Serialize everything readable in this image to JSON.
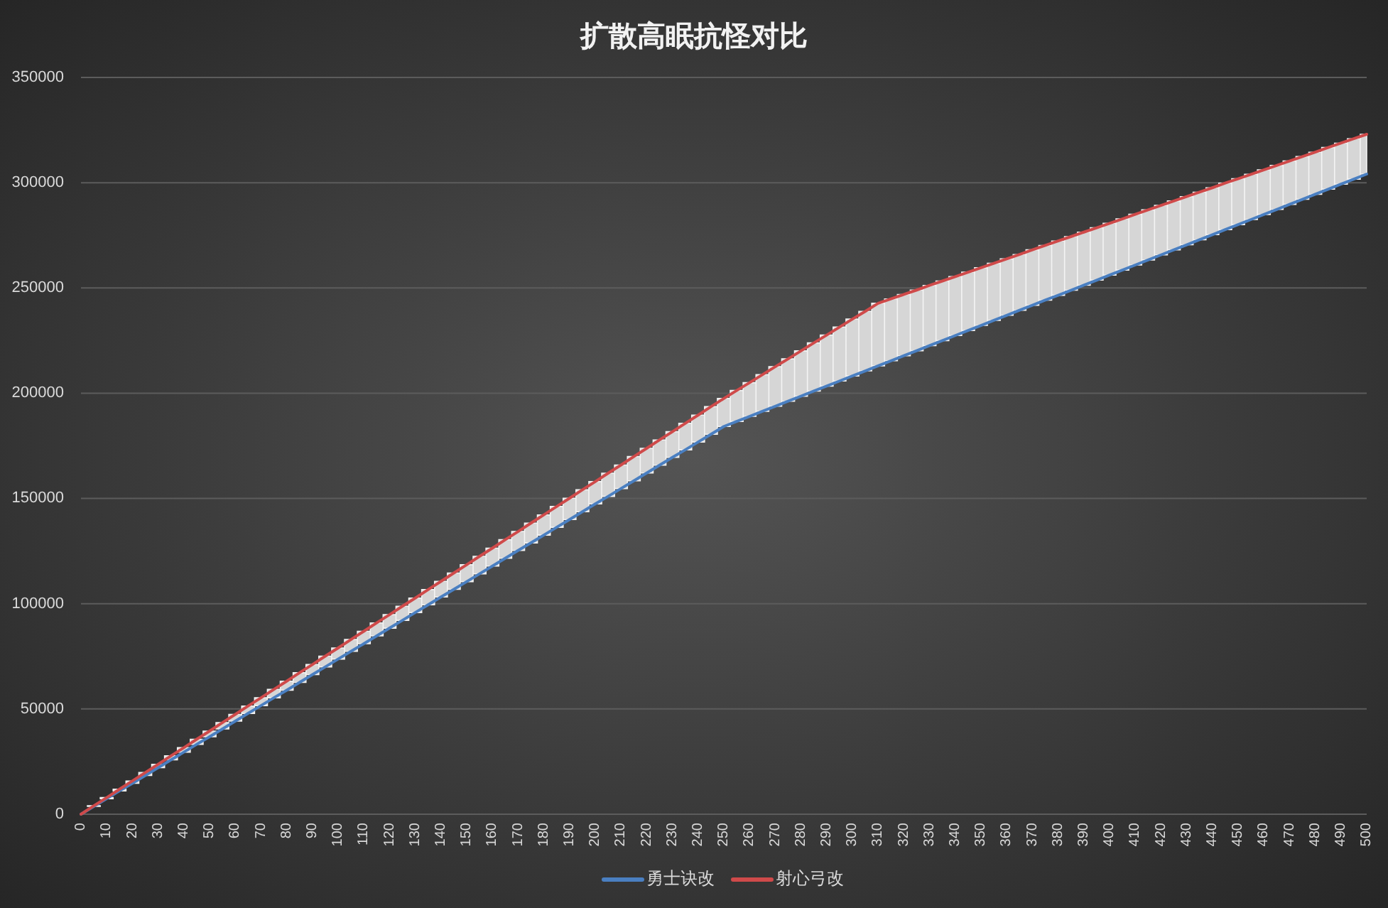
{
  "chart_data": {
    "type": "line",
    "title": "扩散高眠抗怪对比",
    "x": [
      0,
      5,
      10,
      15,
      20,
      25,
      30,
      35,
      40,
      45,
      50,
      55,
      60,
      65,
      70,
      75,
      80,
      85,
      90,
      95,
      100,
      105,
      110,
      115,
      120,
      125,
      130,
      135,
      140,
      145,
      150,
      155,
      160,
      165,
      170,
      175,
      180,
      185,
      190,
      195,
      200,
      205,
      210,
      215,
      220,
      225,
      230,
      235,
      240,
      245,
      250,
      255,
      260,
      265,
      270,
      275,
      280,
      285,
      290,
      295,
      300,
      305,
      310,
      315,
      320,
      325,
      330,
      335,
      340,
      345,
      350,
      355,
      360,
      365,
      370,
      375,
      380,
      385,
      390,
      395,
      400,
      405,
      410,
      415,
      420,
      425,
      430,
      435,
      440,
      445,
      450,
      455,
      460,
      465,
      470,
      475,
      480,
      485,
      490,
      495,
      500
    ],
    "xlim": [
      0,
      500
    ],
    "xticks": [
      0,
      10,
      20,
      30,
      40,
      50,
      60,
      70,
      80,
      90,
      100,
      110,
      120,
      130,
      140,
      150,
      160,
      170,
      180,
      190,
      200,
      210,
      220,
      230,
      240,
      250,
      260,
      270,
      280,
      290,
      300,
      310,
      320,
      330,
      340,
      350,
      360,
      370,
      380,
      390,
      400,
      410,
      420,
      430,
      440,
      450,
      460,
      470,
      480,
      490,
      500
    ],
    "ylim": [
      0,
      350000
    ],
    "yticks": [
      0,
      50000,
      100000,
      150000,
      200000,
      250000,
      300000,
      350000
    ],
    "grid": "y",
    "legend": "bottom",
    "line_style": "solid",
    "series": [
      {
        "name": "勇士诀改",
        "color": "#4a7fc1",
        "values": [
          0,
          3700,
          7400,
          11100,
          14700,
          18400,
          22100,
          25800,
          29500,
          33200,
          36800,
          40500,
          44200,
          47900,
          51600,
          55300,
          58900,
          62600,
          66300,
          70000,
          73700,
          77400,
          81000,
          84700,
          88400,
          92100,
          95800,
          99500,
          103200,
          106800,
          110500,
          114200,
          117900,
          121600,
          125300,
          128900,
          132600,
          136300,
          140000,
          143700,
          147400,
          151000,
          154700,
          158400,
          162100,
          165800,
          169500,
          173100,
          176800,
          180500,
          184200,
          186600,
          189000,
          191400,
          193800,
          196200,
          198600,
          201000,
          203400,
          205800,
          208200,
          210600,
          213000,
          215400,
          217800,
          220200,
          222600,
          225000,
          227400,
          229800,
          232200,
          234600,
          237000,
          239400,
          241800,
          244200,
          246500,
          248900,
          251300,
          253700,
          256100,
          258500,
          260900,
          263300,
          265700,
          268100,
          270500,
          272900,
          275300,
          277700,
          280100,
          282500,
          284900,
          287300,
          289700,
          292100,
          294500,
          296900,
          299300,
          301700,
          304100
        ]
      },
      {
        "name": "射心弓改",
        "color": "#cf4a4a",
        "values": [
          0,
          4000,
          7900,
          11900,
          15800,
          19800,
          23700,
          27700,
          31600,
          35600,
          39500,
          43500,
          47400,
          51400,
          55300,
          59300,
          63200,
          67200,
          71100,
          75100,
          79000,
          83000,
          86900,
          90900,
          94800,
          98800,
          102700,
          106700,
          110600,
          114600,
          118500,
          122500,
          126400,
          130400,
          134300,
          138300,
          142200,
          146200,
          150100,
          154100,
          158000,
          162000,
          165900,
          169900,
          173800,
          177800,
          181700,
          185700,
          189600,
          193600,
          197500,
          201300,
          205000,
          208800,
          212600,
          216300,
          220100,
          223900,
          227600,
          231400,
          235200,
          238900,
          242700,
          244800,
          246900,
          249000,
          251200,
          253300,
          255400,
          257500,
          259600,
          261700,
          263800,
          265900,
          268100,
          270200,
          272300,
          274400,
          276500,
          278600,
          280700,
          282800,
          285000,
          287100,
          289200,
          291300,
          293400,
          295500,
          297600,
          299800,
          301900,
          304000,
          306100,
          308200,
          310300,
          312400,
          314500,
          316700,
          318800,
          320900,
          323000
        ],
        "lower": [
          null,
          3700,
          7400,
          11100,
          14700,
          18400,
          22100,
          25800,
          29500,
          33200,
          36800,
          40500,
          44200,
          47900,
          51600,
          55300,
          58900,
          62600,
          66300,
          70000,
          73700,
          77400,
          81000,
          84700,
          88400,
          92100,
          95800,
          99500,
          103200,
          106800,
          110500,
          114200,
          117900,
          121600,
          125300,
          128900,
          132600,
          136300,
          140000,
          143700,
          147400,
          151000,
          154700,
          158400,
          162100,
          165800,
          169500,
          173100,
          176800,
          180500,
          184200,
          186600,
          189000,
          191400,
          193800,
          196200,
          198600,
          201000,
          203400,
          205800,
          208200,
          210600,
          213000,
          215400,
          217800,
          220200,
          222600,
          225000,
          227400,
          229800,
          232200,
          234600,
          237000,
          239400,
          241800,
          244200,
          246500,
          248900,
          251300,
          253700,
          256100,
          258500,
          260900,
          263300,
          265700,
          268100,
          270500,
          272900,
          275300,
          277700,
          280100,
          282500,
          284900,
          287300,
          289700,
          292100,
          294500,
          296900,
          299300,
          301700,
          304100
        ],
        "upper": [
          null,
          4000,
          7900,
          11900,
          15800,
          19800,
          23700,
          27700,
          31600,
          35600,
          39500,
          43500,
          47400,
          51400,
          55300,
          59300,
          63200,
          67200,
          71100,
          75100,
          79000,
          83000,
          86900,
          90900,
          94800,
          98800,
          102700,
          106700,
          110600,
          114600,
          118500,
          122500,
          126400,
          130400,
          134300,
          138300,
          142200,
          146200,
          150100,
          154100,
          158000,
          162000,
          165900,
          169900,
          173800,
          177800,
          181700,
          185700,
          189600,
          193600,
          197500,
          201300,
          205000,
          208800,
          212600,
          216300,
          220100,
          223900,
          227600,
          231400,
          235200,
          238900,
          242700,
          244800,
          246900,
          249000,
          251200,
          253300,
          255400,
          257500,
          259600,
          261700,
          263800,
          265900,
          268100,
          270200,
          272300,
          274400,
          276500,
          278600,
          280700,
          282800,
          285000,
          287100,
          289200,
          291300,
          293400,
          295500,
          297600,
          299800,
          301900,
          304000,
          306100,
          308200,
          310300,
          312400,
          314500,
          316700,
          318800,
          320900,
          323000
        ]
      }
    ]
  }
}
